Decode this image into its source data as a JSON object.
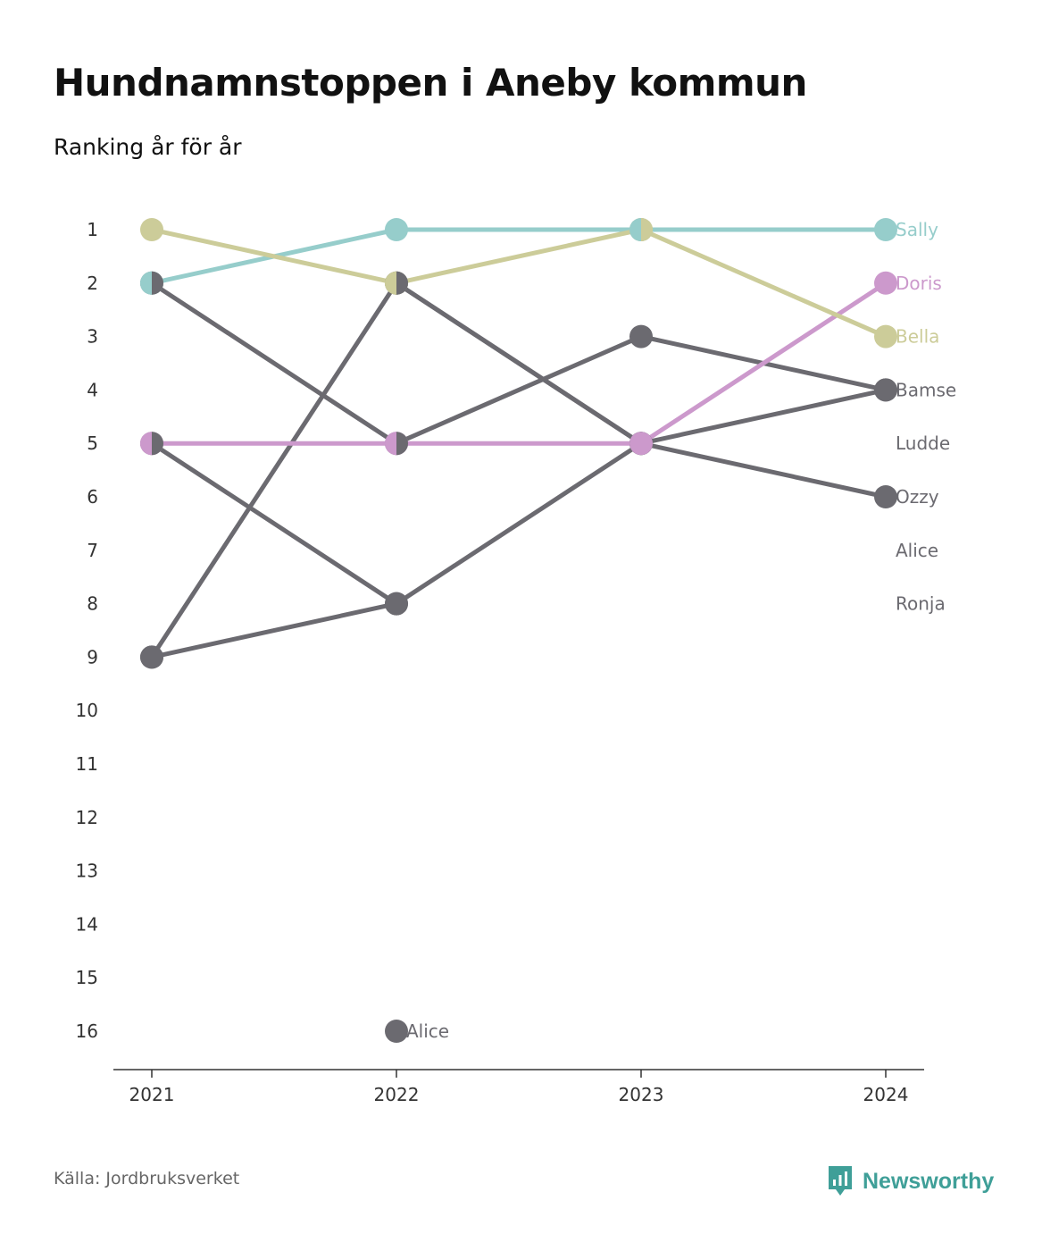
{
  "title": "Hundnamnstoppen i Aneby kommun",
  "subtitle": "Ranking år för år",
  "source": "Källa: Jordbruksverket",
  "brand": "Newsworthy",
  "colors": {
    "Sally": "#96cdcb",
    "Doris": "#cc99cc",
    "Bella": "#cccc99",
    "other": "#6b6a70",
    "brand": "#3f9f98"
  },
  "chart_data": {
    "type": "line",
    "title": "Hundnamnstoppen i Aneby kommun",
    "subtitle": "Ranking år för år",
    "x": [
      "2021",
      "2022",
      "2023",
      "2024"
    ],
    "y_ticks": [
      1,
      2,
      3,
      4,
      5,
      6,
      7,
      8,
      9,
      10,
      11,
      12,
      13,
      14,
      15,
      16
    ],
    "ylim": [
      1,
      16
    ],
    "y_inverted": true,
    "grid": false,
    "end_labels": [
      "Sally",
      "Doris",
      "Bella",
      "Bamse",
      "Ludde",
      "Ozzy",
      "Alice",
      "Ronja"
    ],
    "series": [
      {
        "name": "Sally",
        "color": "#96cdcb",
        "values": [
          2,
          1,
          1,
          1
        ]
      },
      {
        "name": "Doris",
        "color": "#cc99cc",
        "values": [
          5,
          5,
          5,
          2
        ]
      },
      {
        "name": "Bella",
        "color": "#cccc99",
        "values": [
          1,
          2,
          1,
          3
        ]
      },
      {
        "name": "Bamse",
        "color": "#6b6a70",
        "values": [
          5,
          8,
          5,
          4
        ]
      },
      {
        "name": "Ludde",
        "color": "#6b6a70",
        "values": [
          9,
          2,
          5,
          null
        ]
      },
      {
        "name": "Ozzy",
        "color": "#6b6a70",
        "values": [
          9,
          8,
          null,
          null
        ]
      },
      {
        "name": "Alice",
        "color": "#6b6a70",
        "values": [
          null,
          16,
          null,
          null
        ]
      },
      {
        "name": "Ronja",
        "color": "#6b6a70",
        "values": [
          2,
          5,
          3,
          4
        ]
      },
      {
        "name": "Ludde-2024",
        "color": "#6b6a70",
        "values": [
          null,
          2,
          5,
          6
        ]
      }
    ],
    "annotations": [
      {
        "x": "2022",
        "y": 16,
        "text": "Alice"
      }
    ]
  }
}
